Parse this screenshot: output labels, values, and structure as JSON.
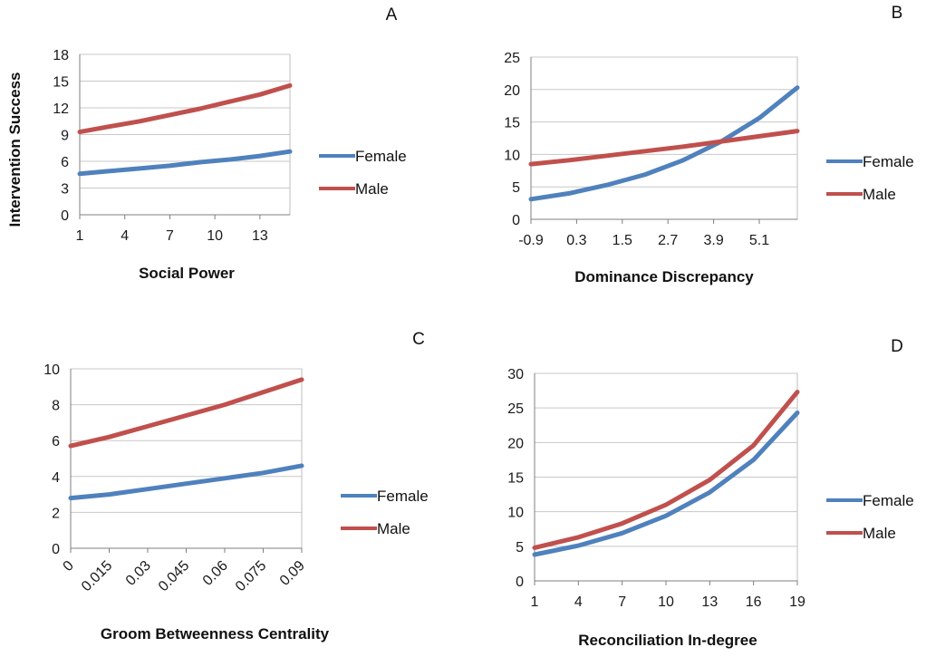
{
  "colors": {
    "female": "#4f81bd",
    "male": "#c0504d"
  },
  "chart_data": [
    {
      "type": "line",
      "panel": "A",
      "xlabel": "Social Power",
      "ylabel": "Intervention Success",
      "ylim": [
        0,
        18
      ],
      "yticks": [
        0,
        3,
        6,
        9,
        12,
        15,
        18
      ],
      "xticks": [
        1,
        4,
        7,
        10,
        13
      ],
      "xlim": [
        1,
        15
      ],
      "grid": true,
      "legend": "right",
      "series": [
        {
          "name": "Female",
          "x": [
            1,
            3,
            5,
            7,
            9,
            11,
            13,
            15
          ],
          "values": [
            4.6,
            4.9,
            5.2,
            5.5,
            5.9,
            6.2,
            6.6,
            7.1
          ]
        },
        {
          "name": "Male",
          "x": [
            1,
            3,
            5,
            7,
            9,
            11,
            13,
            15
          ],
          "values": [
            9.3,
            9.9,
            10.5,
            11.2,
            11.9,
            12.7,
            13.5,
            14.5
          ]
        }
      ]
    },
    {
      "type": "line",
      "panel": "B",
      "xlabel": "Dominance Discrepancy",
      "ylabel": "",
      "ylim": [
        0,
        25
      ],
      "yticks": [
        0,
        5,
        10,
        15,
        20,
        25
      ],
      "xticks": [
        -0.9,
        0.3,
        1.5,
        2.7,
        3.9,
        5.1
      ],
      "xlim": [
        -0.9,
        6.1
      ],
      "grid": true,
      "legend": "right",
      "series": [
        {
          "name": "Female",
          "x": [
            -0.9,
            0.1,
            1.1,
            2.1,
            3.1,
            4.1,
            5.1,
            6.1
          ],
          "values": [
            3.1,
            4.0,
            5.3,
            6.9,
            9.1,
            12.0,
            15.6,
            20.3
          ]
        },
        {
          "name": "Male",
          "x": [
            -0.9,
            0.1,
            1.1,
            2.1,
            3.1,
            4.1,
            5.1,
            6.1
          ],
          "values": [
            8.5,
            9.1,
            9.8,
            10.5,
            11.2,
            12.0,
            12.8,
            13.6
          ]
        }
      ]
    },
    {
      "type": "line",
      "panel": "C",
      "xlabel": "Groom Betweenness Centrality",
      "ylabel": "",
      "ylim": [
        0,
        10
      ],
      "yticks": [
        0,
        2,
        4,
        6,
        8,
        10
      ],
      "xticks": [
        "0",
        "0.015",
        "0.03",
        "0.045",
        "0.06",
        "0.075",
        "0.09"
      ],
      "xticks_num": [
        0,
        0.015,
        0.03,
        0.045,
        0.06,
        0.075,
        0.09
      ],
      "xlim": [
        0,
        0.09
      ],
      "grid": true,
      "legend": "right",
      "series": [
        {
          "name": "Female",
          "x": [
            0,
            0.015,
            0.03,
            0.045,
            0.06,
            0.075,
            0.09
          ],
          "values": [
            2.8,
            3.0,
            3.3,
            3.6,
            3.9,
            4.2,
            4.6
          ]
        },
        {
          "name": "Male",
          "x": [
            0,
            0.015,
            0.03,
            0.045,
            0.06,
            0.075,
            0.09
          ],
          "values": [
            5.7,
            6.2,
            6.8,
            7.4,
            8.0,
            8.7,
            9.4
          ]
        }
      ]
    },
    {
      "type": "line",
      "panel": "D",
      "xlabel": "Reconciliation In-degree",
      "ylabel": "",
      "ylim": [
        0,
        30
      ],
      "yticks": [
        0,
        5,
        10,
        15,
        20,
        25,
        30
      ],
      "xticks": [
        1,
        4,
        7,
        10,
        13,
        16,
        19
      ],
      "xlim": [
        1,
        19
      ],
      "grid": true,
      "legend": "right",
      "series": [
        {
          "name": "Female",
          "x": [
            1,
            4,
            7,
            10,
            13,
            16,
            19
          ],
          "values": [
            3.8,
            5.1,
            6.9,
            9.4,
            12.8,
            17.5,
            24.3
          ]
        },
        {
          "name": "Male",
          "x": [
            1,
            4,
            7,
            10,
            13,
            16,
            19
          ],
          "values": [
            4.8,
            6.3,
            8.3,
            11.0,
            14.6,
            19.6,
            27.3
          ]
        }
      ]
    }
  ]
}
